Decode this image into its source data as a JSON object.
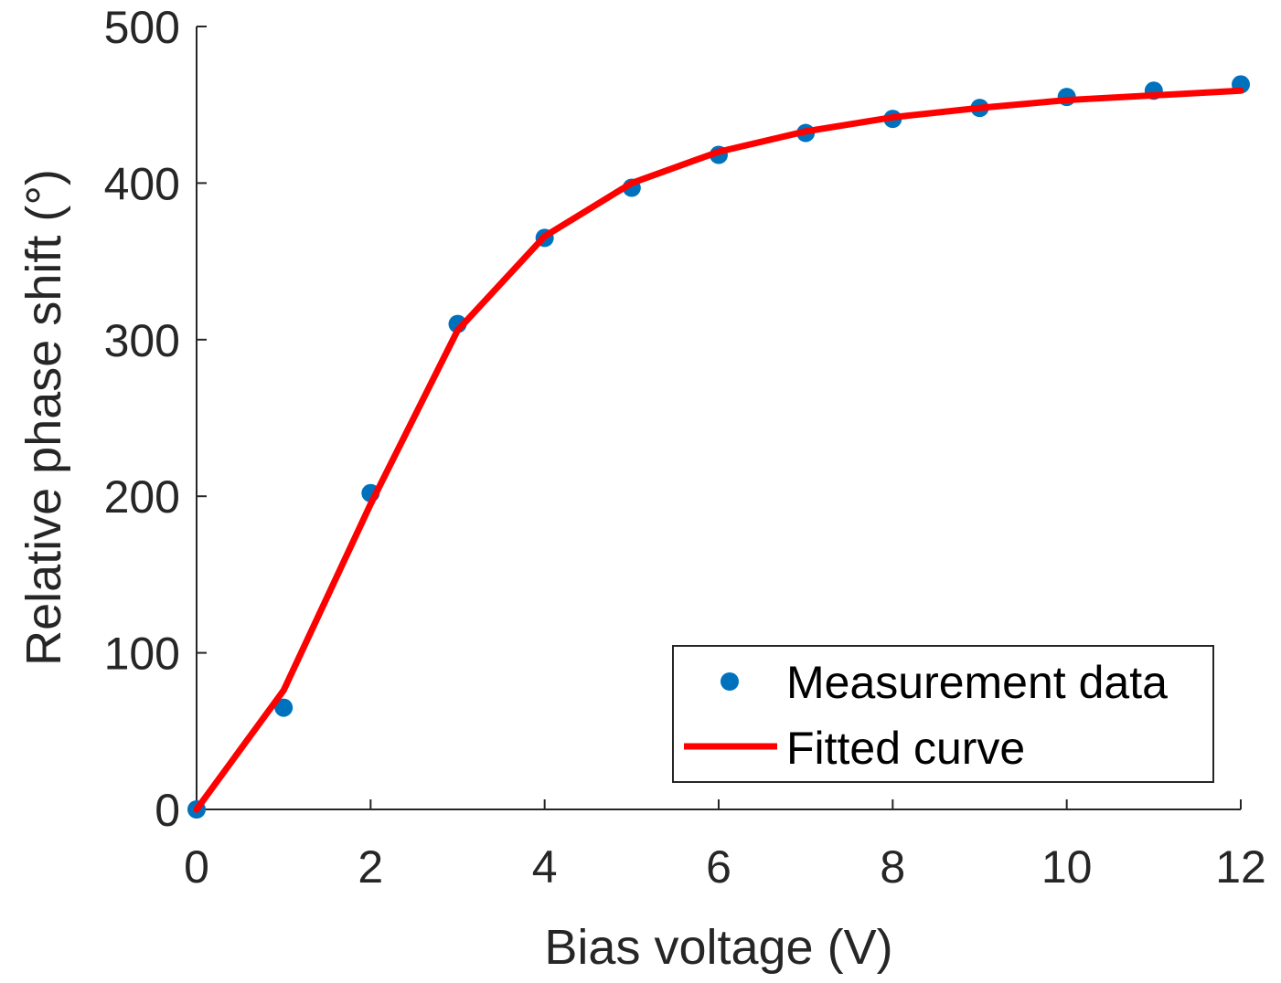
{
  "chart_data": {
    "type": "scatter",
    "title": "",
    "xlabel": "Bias voltage (V)",
    "ylabel": "Relative phase shift (°)",
    "xlim": [
      0,
      12
    ],
    "ylim": [
      0,
      500
    ],
    "xticks": [
      0,
      2,
      4,
      6,
      8,
      10,
      12
    ],
    "yticks": [
      0,
      100,
      200,
      300,
      400,
      500
    ],
    "grid": false,
    "legend_position": "bottom-right",
    "colors": {
      "measurement": "#0072BD",
      "fit": "#FF0000",
      "axis": "#262626"
    },
    "series": [
      {
        "name": "Measurement data",
        "kind": "markers",
        "x": [
          0,
          1,
          2,
          3,
          4,
          5,
          6,
          7,
          8,
          9,
          10,
          11,
          12
        ],
        "y": [
          0,
          65,
          202,
          310,
          365,
          397,
          418,
          432,
          441,
          448,
          455,
          459,
          463
        ]
      },
      {
        "name": "Fitted curve",
        "kind": "line",
        "x": [
          0,
          1,
          2,
          3,
          4,
          5,
          6,
          7,
          8,
          9,
          10,
          11,
          12
        ],
        "y": [
          0,
          76,
          195,
          306,
          366,
          400,
          420,
          433,
          442,
          448,
          453,
          456,
          459
        ]
      }
    ]
  }
}
